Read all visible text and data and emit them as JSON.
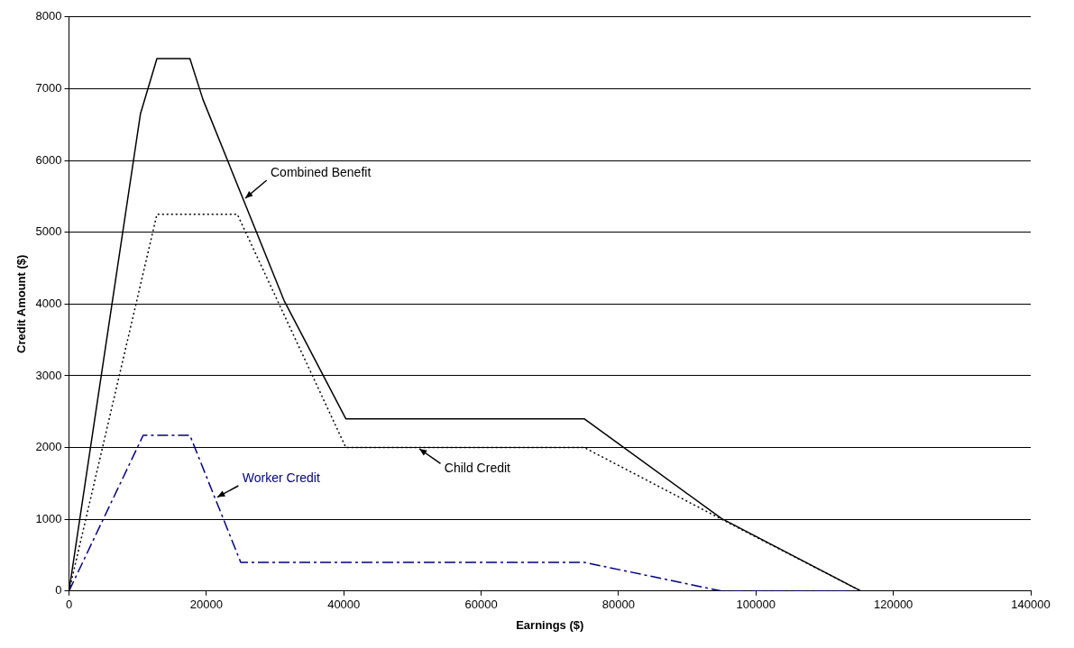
{
  "chart_data": {
    "type": "line",
    "xlabel": "Earnings ($)",
    "ylabel": "Credit Amount ($)",
    "xlim": [
      0,
      140000
    ],
    "xticks": [
      0,
      20000,
      40000,
      60000,
      80000,
      100000,
      120000,
      140000
    ],
    "ylim": [
      0,
      8000
    ],
    "yticks": [
      0,
      1000,
      2000,
      3000,
      4000,
      5000,
      6000,
      7000,
      8000
    ],
    "grid": "y",
    "legend": false,
    "marker": "none",
    "series": [
      {
        "name": "Combined Benefit",
        "color": "#000000",
        "line_style": "solid",
        "x": [
          0,
          10400,
          12800,
          17600,
          19500,
          31300,
          40300,
          75000,
          95000,
          115300
        ],
        "values": [
          0,
          6650,
          7420,
          7420,
          6850,
          4050,
          2400,
          2400,
          1010,
          0
        ]
      },
      {
        "name": "Child Credit",
        "color": "#000000",
        "line_style": "dotted",
        "x": [
          0,
          12800,
          24500,
          40300,
          75000,
          95000,
          115300
        ],
        "values": [
          0,
          5250,
          5250,
          2000,
          2000,
          1000,
          0
        ]
      },
      {
        "name": "Worker Credit",
        "color": "#000080",
        "line_style": "dashed",
        "x": [
          0,
          10800,
          17600,
          25000,
          75000,
          95000,
          115300
        ],
        "values": [
          0,
          2170,
          2170,
          400,
          400,
          0,
          0
        ]
      }
    ]
  }
}
